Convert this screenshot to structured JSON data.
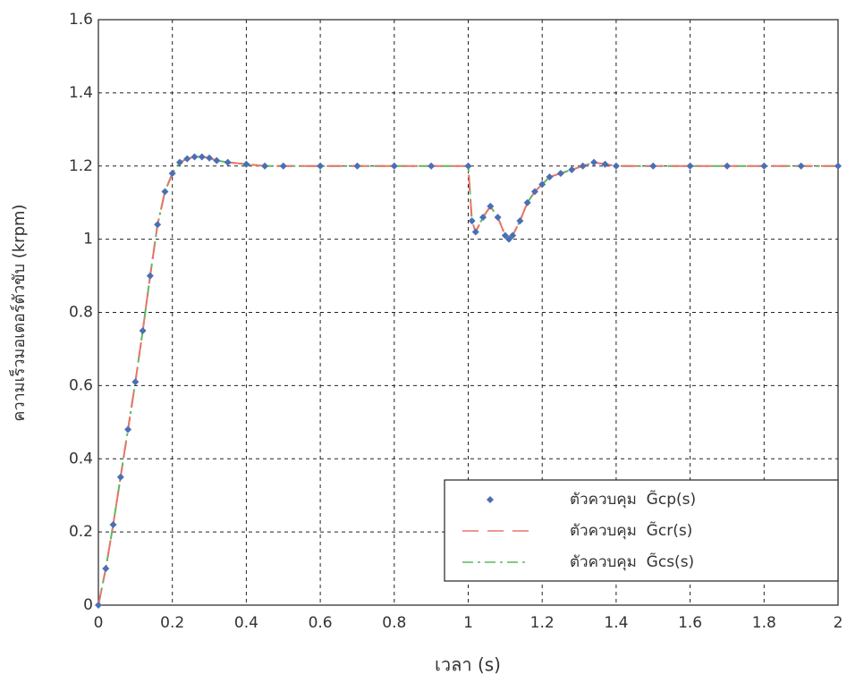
{
  "chart_data": {
    "type": "line",
    "x_label": "เวลา (s)",
    "y_label": "ความเร็วมอเตอร์ตัวขับ (krpm)",
    "x": [
      0,
      0.02,
      0.04,
      0.06,
      0.08,
      0.1,
      0.12,
      0.14,
      0.16,
      0.18,
      0.2,
      0.22,
      0.24,
      0.26,
      0.28,
      0.3,
      0.32,
      0.35,
      0.4,
      0.45,
      0.5,
      0.6,
      0.7,
      0.8,
      0.9,
      1.0,
      1.01,
      1.02,
      1.04,
      1.06,
      1.08,
      1.1,
      1.11,
      1.12,
      1.14,
      1.16,
      1.18,
      1.2,
      1.22,
      1.25,
      1.28,
      1.31,
      1.34,
      1.37,
      1.4,
      1.5,
      1.6,
      1.7,
      1.8,
      1.9,
      2.0
    ],
    "series": [
      {
        "name": "ตัวควบคุม  G̃cp(s)",
        "color": "#4a6fb5",
        "style": "marker",
        "values": [
          0,
          0.1,
          0.22,
          0.35,
          0.48,
          0.61,
          0.75,
          0.9,
          1.04,
          1.13,
          1.18,
          1.21,
          1.22,
          1.225,
          1.225,
          1.222,
          1.215,
          1.21,
          1.205,
          1.2,
          1.2,
          1.2,
          1.2,
          1.2,
          1.2,
          1.2,
          1.05,
          1.02,
          1.06,
          1.09,
          1.06,
          1.01,
          1.0,
          1.01,
          1.05,
          1.1,
          1.13,
          1.15,
          1.17,
          1.18,
          1.19,
          1.2,
          1.21,
          1.205,
          1.2,
          1.2,
          1.2,
          1.2,
          1.2,
          1.2,
          1.2
        ]
      },
      {
        "name": "ตัวควบคุม  G̃cr(s)",
        "color": "#e8756a",
        "style": "dashed",
        "values": [
          0,
          0.1,
          0.22,
          0.35,
          0.48,
          0.61,
          0.75,
          0.9,
          1.04,
          1.13,
          1.18,
          1.21,
          1.22,
          1.225,
          1.225,
          1.222,
          1.215,
          1.21,
          1.205,
          1.2,
          1.2,
          1.2,
          1.2,
          1.2,
          1.2,
          1.2,
          1.05,
          1.02,
          1.06,
          1.09,
          1.06,
          1.01,
          1.0,
          1.01,
          1.05,
          1.1,
          1.13,
          1.15,
          1.17,
          1.18,
          1.19,
          1.2,
          1.21,
          1.205,
          1.2,
          1.2,
          1.2,
          1.2,
          1.2,
          1.2,
          1.2
        ]
      },
      {
        "name": "ตัวควบคุม  G̃cs(s)",
        "color": "#5cb85c",
        "style": "dashdot",
        "values": [
          0,
          0.1,
          0.22,
          0.35,
          0.48,
          0.61,
          0.75,
          0.9,
          1.04,
          1.13,
          1.18,
          1.21,
          1.22,
          1.225,
          1.225,
          1.222,
          1.215,
          1.21,
          1.205,
          1.2,
          1.2,
          1.2,
          1.2,
          1.2,
          1.2,
          1.2,
          1.05,
          1.02,
          1.06,
          1.09,
          1.06,
          1.01,
          1.0,
          1.01,
          1.05,
          1.1,
          1.13,
          1.15,
          1.17,
          1.18,
          1.19,
          1.2,
          1.21,
          1.205,
          1.2,
          1.2,
          1.2,
          1.2,
          1.2,
          1.2,
          1.2
        ]
      }
    ],
    "xlim": [
      0,
      2
    ],
    "xticks": [
      0,
      0.2,
      0.4,
      0.6,
      0.8,
      1,
      1.2,
      1.4,
      1.6,
      1.8,
      2
    ],
    "ylim": [
      0,
      1.6
    ],
    "yticks": [
      0,
      0.2,
      0.4,
      0.6,
      0.8,
      1,
      1.2,
      1.4,
      1.6
    ],
    "grid": true,
    "legend": "lower right"
  }
}
